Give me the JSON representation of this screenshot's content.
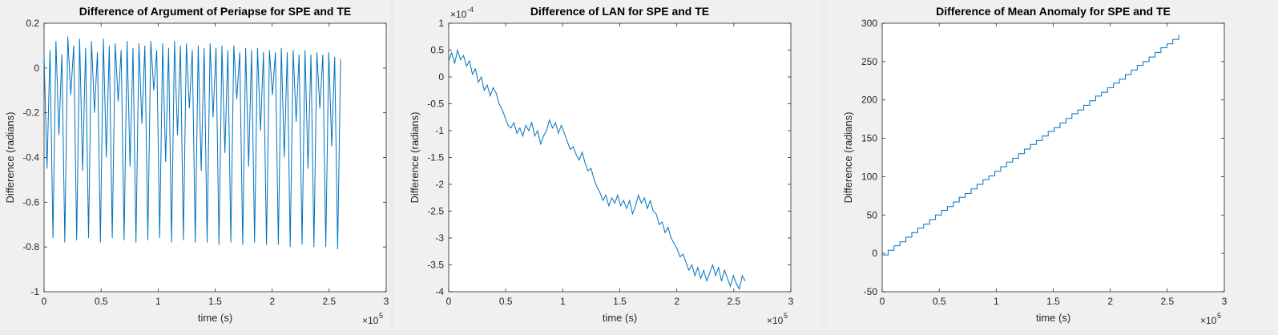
{
  "line_color": "#0072bd",
  "chart_data": [
    {
      "type": "line",
      "title": "Difference of Argument of Periapse for SPE and TE",
      "xlabel": "time (s)",
      "ylabel": "Difference (radians)",
      "x_exponent": "×10",
      "x_exponent_power": "5",
      "xlim": [
        0,
        300000
      ],
      "ylim": [
        -1,
        0.2
      ],
      "xticks": [
        0,
        50000,
        100000,
        150000,
        200000,
        250000,
        300000
      ],
      "xticklabels": [
        "0",
        "0.5",
        "1",
        "1.5",
        "2",
        "2.5",
        "3"
      ],
      "yticks": [
        -1,
        -0.8,
        -0.6,
        -0.4,
        -0.2,
        0,
        0.2
      ],
      "yticklabels": [
        "-1",
        "-0.8",
        "-0.6",
        "-0.4",
        "-0.2",
        "0",
        "0.2"
      ],
      "grid": false,
      "series": [
        {
          "x": [
            0,
            2600,
            5200,
            7800,
            10400,
            13000,
            15600,
            18200,
            20800,
            23400,
            26000,
            28600,
            31200,
            33800,
            36400,
            39000,
            41600,
            44200,
            46800,
            49400,
            52000,
            54600,
            57200,
            59800,
            62400,
            65000,
            67600,
            70200,
            72800,
            75400,
            78000,
            80600,
            83200,
            85800,
            88400,
            91000,
            93600,
            96200,
            98800,
            101400,
            104000,
            106600,
            109200,
            111800,
            114400,
            117000,
            119600,
            122200,
            124800,
            127400,
            130000,
            132600,
            135200,
            137800,
            140400,
            143000,
            145600,
            148200,
            150800,
            153400,
            156000,
            158600,
            161200,
            163800,
            166400,
            169000,
            171600,
            174200,
            176800,
            179400,
            182000,
            184600,
            187200,
            189800,
            192400,
            195000,
            197600,
            200200,
            202800,
            205400,
            208000,
            210600,
            213200,
            215800,
            218400,
            221000,
            223600,
            226200,
            228800,
            231400,
            234000,
            236600,
            239200,
            241800,
            244400,
            247000,
            249600,
            252200,
            254800,
            257400,
            260000
          ],
          "y": [
            0.05,
            -0.45,
            0.08,
            -0.76,
            0.12,
            -0.3,
            0.06,
            -0.78,
            0.14,
            -0.12,
            0.1,
            -0.77,
            0.13,
            -0.46,
            0.09,
            -0.76,
            0.12,
            -0.2,
            0.07,
            -0.78,
            0.13,
            -0.4,
            0.1,
            -0.76,
            0.11,
            -0.15,
            0.08,
            -0.77,
            0.12,
            -0.44,
            0.09,
            -0.78,
            0.11,
            -0.25,
            0.1,
            -0.77,
            0.12,
            -0.1,
            0.08,
            -0.76,
            0.11,
            -0.42,
            0.09,
            -0.78,
            0.12,
            -0.3,
            0.1,
            -0.77,
            0.11,
            -0.18,
            0.08,
            -0.78,
            0.1,
            -0.46,
            0.09,
            -0.78,
            0.11,
            -0.22,
            0.09,
            -0.79,
            0.1,
            -0.38,
            0.08,
            -0.78,
            0.1,
            -0.14,
            0.07,
            -0.79,
            0.09,
            -0.44,
            0.08,
            -0.78,
            0.09,
            -0.28,
            0.07,
            -0.79,
            0.08,
            -0.12,
            0.07,
            -0.79,
            0.09,
            -0.4,
            0.07,
            -0.8,
            0.08,
            -0.24,
            0.06,
            -0.79,
            0.08,
            -0.45,
            0.06,
            -0.8,
            0.07,
            -0.18,
            0.06,
            -0.8,
            0.07,
            -0.35,
            0.05,
            -0.81,
            0.04
          ]
        }
      ]
    },
    {
      "type": "line",
      "title": "Difference of LAN for SPE and TE",
      "xlabel": "time (s)",
      "ylabel": "Difference (radians)",
      "x_exponent": "×10",
      "x_exponent_power": "5",
      "y_exponent": "×10",
      "y_exponent_power": "-4",
      "xlim": [
        0,
        300000
      ],
      "ylim": [
        -4,
        1
      ],
      "xticks": [
        0,
        50000,
        100000,
        150000,
        200000,
        250000,
        300000
      ],
      "xticklabels": [
        "0",
        "0.5",
        "1",
        "1.5",
        "2",
        "2.5",
        "3"
      ],
      "yticks": [
        -4,
        -3.5,
        -3,
        -2.5,
        -2,
        -1.5,
        -1,
        -0.5,
        0,
        0.5,
        1
      ],
      "yticklabels": [
        "-4",
        "-3.5",
        "-3",
        "-2.5",
        "-2",
        "-1.5",
        "-1",
        "-0.5",
        "0",
        "0.5",
        "1"
      ],
      "grid": false,
      "series": [
        {
          "x": [
            0,
            2600,
            5200,
            7800,
            10400,
            13000,
            15600,
            18200,
            20800,
            23400,
            26000,
            28600,
            31200,
            33800,
            36400,
            39000,
            41600,
            44200,
            46800,
            49400,
            52000,
            54600,
            57200,
            59800,
            62400,
            65000,
            67600,
            70200,
            72800,
            75400,
            78000,
            80600,
            83200,
            85800,
            88400,
            91000,
            93600,
            96200,
            98800,
            101400,
            104000,
            106600,
            109200,
            111800,
            114400,
            117000,
            119600,
            122200,
            124800,
            127400,
            130000,
            132600,
            135200,
            137800,
            140400,
            143000,
            145600,
            148200,
            150800,
            153400,
            156000,
            158600,
            161200,
            163800,
            166400,
            169000,
            171600,
            174200,
            176800,
            179400,
            182000,
            184600,
            187200,
            189800,
            192400,
            195000,
            197600,
            200200,
            202800,
            205400,
            208000,
            210600,
            213200,
            215800,
            218400,
            221000,
            223600,
            226200,
            228800,
            231400,
            234000,
            236600,
            239200,
            241800,
            244400,
            247000,
            249600,
            252200,
            254800,
            257400,
            260000
          ],
          "y": [
            0.3,
            0.45,
            0.25,
            0.5,
            0.32,
            0.4,
            0.2,
            0.3,
            0.05,
            0.15,
            -0.1,
            0.0,
            -0.25,
            -0.15,
            -0.35,
            -0.2,
            -0.3,
            -0.5,
            -0.6,
            -0.75,
            -0.9,
            -0.95,
            -0.85,
            -1.05,
            -0.95,
            -1.1,
            -0.9,
            -1.0,
            -0.85,
            -1.1,
            -1.0,
            -1.25,
            -1.1,
            -1.0,
            -0.8,
            -0.95,
            -0.85,
            -1.05,
            -0.9,
            -1.05,
            -1.2,
            -1.35,
            -1.3,
            -1.45,
            -1.55,
            -1.4,
            -1.6,
            -1.75,
            -1.7,
            -1.9,
            -2.05,
            -2.15,
            -2.3,
            -2.2,
            -2.4,
            -2.25,
            -2.35,
            -2.2,
            -2.4,
            -2.3,
            -2.45,
            -2.3,
            -2.55,
            -2.4,
            -2.2,
            -2.35,
            -2.25,
            -2.45,
            -2.3,
            -2.5,
            -2.55,
            -2.75,
            -2.7,
            -2.9,
            -2.8,
            -3.0,
            -3.1,
            -3.2,
            -3.35,
            -3.3,
            -3.45,
            -3.6,
            -3.5,
            -3.7,
            -3.55,
            -3.75,
            -3.6,
            -3.8,
            -3.65,
            -3.5,
            -3.7,
            -3.55,
            -3.8,
            -3.6,
            -3.75,
            -3.9,
            -3.7,
            -3.85,
            -3.95,
            -3.7,
            -3.8
          ]
        }
      ]
    },
    {
      "type": "line",
      "title": "Difference of Mean Anomaly for SPE and TE",
      "xlabel": "time (s)",
      "ylabel": "Difference (radians)",
      "x_exponent": "×10",
      "x_exponent_power": "5",
      "xlim": [
        0,
        300000
      ],
      "ylim": [
        -50,
        300
      ],
      "xticks": [
        0,
        50000,
        100000,
        150000,
        200000,
        250000,
        300000
      ],
      "xticklabels": [
        "0",
        "0.5",
        "1",
        "1.5",
        "2",
        "2.5",
        "3"
      ],
      "yticks": [
        -50,
        0,
        50,
        100,
        150,
        200,
        250,
        300
      ],
      "yticklabels": [
        "-50",
        "0",
        "50",
        "100",
        "150",
        "200",
        "250",
        "300"
      ],
      "grid": false,
      "step": true,
      "series": [
        {
          "x": [
            0,
            5200,
            10400,
            15600,
            20800,
            26000,
            31200,
            36400,
            41600,
            46800,
            52000,
            57200,
            62400,
            67600,
            72800,
            78000,
            83200,
            88400,
            93600,
            98800,
            104000,
            109200,
            114400,
            119600,
            124800,
            130000,
            135200,
            140400,
            145600,
            150800,
            156000,
            161200,
            166400,
            171600,
            176800,
            182000,
            187200,
            192400,
            197600,
            202800,
            208000,
            213200,
            218400,
            223600,
            228800,
            234000,
            239200,
            244400,
            249600,
            254800,
            260000
          ],
          "y": [
            -2,
            4,
            10,
            15,
            21,
            27,
            33,
            38,
            44,
            50,
            56,
            61,
            67,
            73,
            78,
            84,
            90,
            96,
            101,
            107,
            113,
            119,
            124,
            130,
            136,
            142,
            147,
            153,
            159,
            164,
            170,
            176,
            182,
            187,
            193,
            199,
            205,
            210,
            216,
            222,
            227,
            233,
            239,
            245,
            250,
            256,
            262,
            268,
            273,
            279,
            285
          ]
        }
      ]
    }
  ]
}
